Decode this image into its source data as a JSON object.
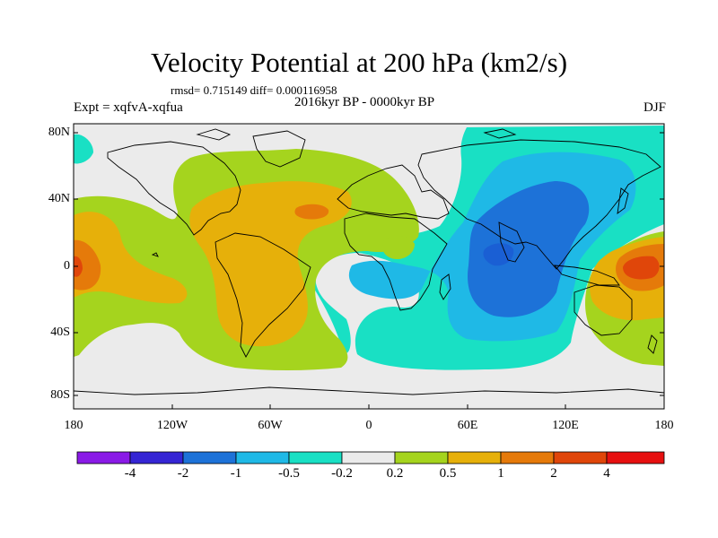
{
  "title": "Velocity Potential at 200 hPa (km2/s)",
  "stats": "rmsd= 0.715149 diff= 0.000116958",
  "period": "2016kyr BP - 0000kyr BP",
  "experiment": "Expt = xqfvA-xqfua",
  "season": "DJF",
  "map": {
    "projection": "equirectangular",
    "lon_range": [
      -180,
      180
    ],
    "lat_range": [
      -90,
      90
    ],
    "lat_ticks": [
      "80N",
      "40N",
      "0",
      "40S",
      "80S"
    ],
    "lon_ticks": [
      "180",
      "120W",
      "60W",
      "0",
      "60E",
      "120E",
      "180"
    ],
    "field": "velocity potential anomaly at 200 hPa (km2/s)",
    "anomaly_features": [
      {
        "region": "Indian Ocean",
        "approx_center": [
          75,
          -5
        ],
        "min_value_range": [
          -2,
          -1
        ]
      },
      {
        "region": "North Africa / Eurasia / North Pacific",
        "value_range": [
          -0.5,
          -0.2
        ]
      },
      {
        "region": "Southern Ocean / south Atlantic",
        "value_range": [
          -0.5,
          -0.2
        ]
      },
      {
        "region": "Western Pacific",
        "approx_center": [
          155,
          0
        ],
        "max_value_range": [
          2,
          4
        ]
      },
      {
        "region": "Central East Pacific",
        "approx_center": [
          -170,
          0
        ],
        "max_value_range": [
          1,
          2
        ]
      },
      {
        "region": "North Atlantic",
        "approx_center": [
          -35,
          30
        ],
        "max_value_range": [
          1,
          2
        ]
      },
      {
        "region": "South America",
        "value_range": [
          0.5,
          1
        ]
      }
    ]
  },
  "colorbar": {
    "labels": [
      "-4",
      "-2",
      "-1",
      "-0.5",
      "-0.2",
      "0.2",
      "0.5",
      "1",
      "2",
      "4"
    ],
    "colors": [
      "#8a1ae6",
      "#3525d4",
      "#1d72d8",
      "#1fb9e6",
      "#19e0c4",
      "#ebebeb",
      "#a5d41e",
      "#e6b00a",
      "#e57a0a",
      "#e0460a",
      "#e61010"
    ]
  },
  "palette": {
    "n05": "#19e0c4",
    "n1": "#1fb9e6",
    "n2": "#1d72d8",
    "neutral": "#ebebeb",
    "p02": "#a5d41e",
    "p05": "#e6b00a",
    "p1": "#e57a0a",
    "p2": "#e0460a",
    "border": "#000000"
  }
}
